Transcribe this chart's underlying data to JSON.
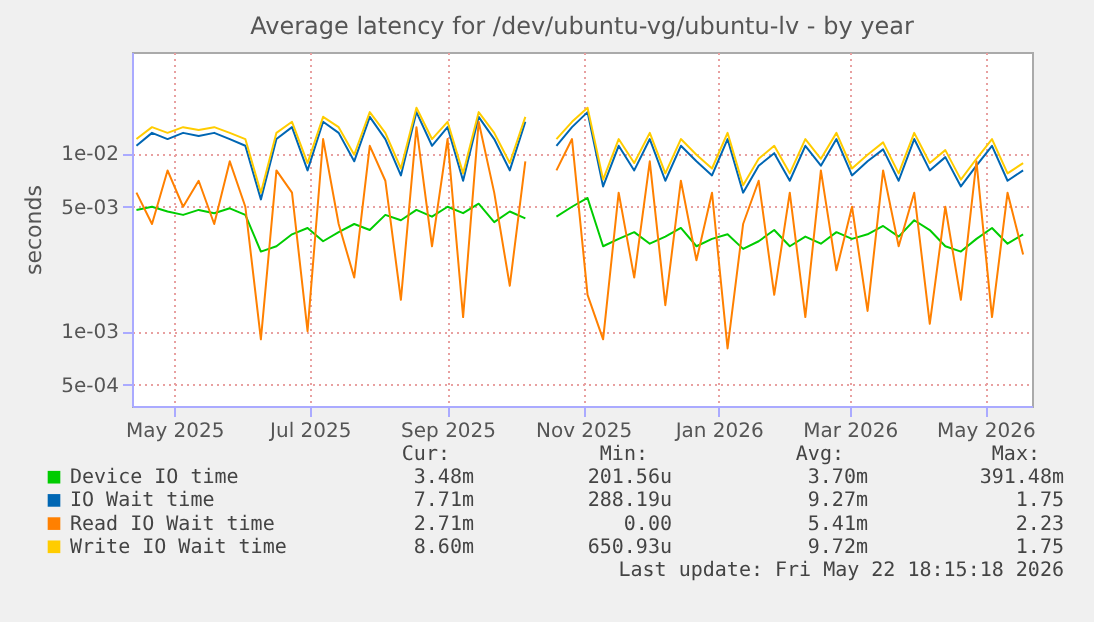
{
  "chart_data": {
    "type": "line",
    "title": "Average latency for /dev/ubuntu-vg/ubuntu-lv - by year",
    "ylabel": "seconds",
    "x": [
      "2025-04-14",
      "2025-04-21",
      "2025-04-28",
      "2025-05-05",
      "2025-05-12",
      "2025-05-19",
      "2025-05-26",
      "2025-06-02",
      "2025-06-09",
      "2025-06-16",
      "2025-06-23",
      "2025-06-30",
      "2025-07-07",
      "2025-07-14",
      "2025-07-21",
      "2025-07-28",
      "2025-08-04",
      "2025-08-11",
      "2025-08-18",
      "2025-08-25",
      "2025-09-01",
      "2025-09-08",
      "2025-09-15",
      "2025-09-22",
      "2025-09-29",
      "2025-10-06",
      "2025-10-13",
      "2025-10-20",
      "2025-10-27",
      "2025-11-03",
      "2025-11-10",
      "2025-11-17",
      "2025-11-24",
      "2025-12-01",
      "2025-12-08",
      "2025-12-15",
      "2025-12-22",
      "2025-12-29",
      "2026-01-05",
      "2026-01-12",
      "2026-01-19",
      "2026-01-26",
      "2026-02-02",
      "2026-02-09",
      "2026-02-16",
      "2026-02-23",
      "2026-03-02",
      "2026-03-09",
      "2026-03-16",
      "2026-03-23",
      "2026-03-30",
      "2026-04-06",
      "2026-04-13",
      "2026-04-20",
      "2026-04-27",
      "2026-05-04",
      "2026-05-11",
      "2026-05-18"
    ],
    "series": [
      {
        "name": "Device IO time",
        "color": "#00cc00",
        "values": [
          0.0048,
          0.005,
          0.0047,
          0.0045,
          0.0048,
          0.0046,
          0.0049,
          0.0045,
          0.0028,
          0.003,
          0.0035,
          0.0038,
          0.0032,
          0.0036,
          0.004,
          0.0037,
          0.0045,
          0.0042,
          0.0048,
          0.0044,
          0.005,
          0.0046,
          0.0052,
          0.0041,
          0.0047,
          0.0043,
          null,
          0.0044,
          0.005,
          0.0056,
          0.003,
          0.0033,
          0.0036,
          0.0031,
          0.0034,
          0.0038,
          0.003,
          0.0033,
          0.0035,
          0.0029,
          0.0032,
          0.0037,
          0.003,
          0.0034,
          0.0031,
          0.0036,
          0.0033,
          0.0035,
          0.0039,
          0.0034,
          0.0042,
          0.0037,
          0.003,
          0.0028,
          0.0033,
          0.0038,
          0.0031,
          0.0035
        ]
      },
      {
        "name": "IO Wait time",
        "color": "#0066b3",
        "values": [
          0.011,
          0.013,
          0.012,
          0.013,
          0.0125,
          0.013,
          0.012,
          0.011,
          0.0055,
          0.012,
          0.014,
          0.008,
          0.015,
          0.013,
          0.009,
          0.016,
          0.012,
          0.0075,
          0.017,
          0.011,
          0.014,
          0.007,
          0.016,
          0.012,
          0.008,
          0.015,
          null,
          0.011,
          0.014,
          0.017,
          0.0065,
          0.011,
          0.008,
          0.012,
          0.007,
          0.011,
          0.009,
          0.0075,
          0.012,
          0.006,
          0.0085,
          0.01,
          0.007,
          0.011,
          0.0085,
          0.012,
          0.0075,
          0.009,
          0.0105,
          0.007,
          0.012,
          0.008,
          0.0095,
          0.0065,
          0.0085,
          0.011,
          0.007,
          0.008
        ]
      },
      {
        "name": "Read IO Wait time",
        "color": "#ff8000",
        "values": [
          0.006,
          0.004,
          0.008,
          0.005,
          0.007,
          0.004,
          0.009,
          0.005,
          0.0009,
          0.008,
          0.006,
          0.001,
          0.012,
          0.004,
          0.002,
          0.011,
          0.007,
          0.0015,
          0.014,
          0.003,
          0.012,
          0.0012,
          0.015,
          0.006,
          0.0018,
          0.009,
          null,
          0.008,
          0.012,
          0.0016,
          0.0009,
          0.006,
          0.002,
          0.009,
          0.0014,
          0.007,
          0.0025,
          0.006,
          0.0008,
          0.004,
          0.007,
          0.0016,
          0.006,
          0.0012,
          0.008,
          0.0022,
          0.005,
          0.0013,
          0.008,
          0.003,
          0.006,
          0.0011,
          0.005,
          0.0015,
          0.009,
          0.0012,
          0.006,
          0.0027
        ]
      },
      {
        "name": "Write IO Wait time",
        "color": "#ffcc00",
        "values": [
          0.012,
          0.014,
          0.013,
          0.014,
          0.0135,
          0.014,
          0.013,
          0.012,
          0.006,
          0.013,
          0.015,
          0.0088,
          0.016,
          0.014,
          0.0098,
          0.017,
          0.013,
          0.0082,
          0.018,
          0.012,
          0.015,
          0.0077,
          0.017,
          0.013,
          0.0088,
          0.016,
          null,
          0.012,
          0.015,
          0.018,
          0.0071,
          0.012,
          0.0088,
          0.013,
          0.0077,
          0.012,
          0.0098,
          0.0082,
          0.013,
          0.0066,
          0.0093,
          0.011,
          0.0077,
          0.012,
          0.0093,
          0.013,
          0.0082,
          0.0098,
          0.0115,
          0.0077,
          0.013,
          0.0088,
          0.0104,
          0.0071,
          0.0093,
          0.012,
          0.0077,
          0.0088
        ]
      }
    ],
    "xlim": [
      "2025-04-12",
      "2026-05-22"
    ],
    "xticks": [
      {
        "value": "2025-05-01",
        "label": "May 2025"
      },
      {
        "value": "2025-07-01",
        "label": "Jul 2025"
      },
      {
        "value": "2025-09-01",
        "label": "Sep 2025"
      },
      {
        "value": "2025-11-01",
        "label": "Nov 2025"
      },
      {
        "value": "2026-01-01",
        "label": "Jan 2026"
      },
      {
        "value": "2026-03-01",
        "label": "Mar 2026"
      },
      {
        "value": "2026-05-01",
        "label": "May 2026"
      }
    ],
    "ylim": [
      0.00038,
      0.037
    ],
    "yticks": [
      {
        "value": 0.0005,
        "label": "5e-04"
      },
      {
        "value": 0.001,
        "label": "1e-03"
      },
      {
        "value": 0.005,
        "label": "5e-03"
      },
      {
        "value": 0.01,
        "label": "1e-02"
      }
    ],
    "log": "y",
    "grid": true,
    "legend": "bottom",
    "line_style": "solid",
    "marker": "none",
    "annotations": [
      "Cur:",
      "Min:",
      "Avg:",
      "Max:",
      "3.48m",
      "201.56u",
      "3.70m",
      "391.48m",
      "7.71m",
      "288.19u",
      "9.27m",
      "1.75",
      "2.71m",
      "0.00",
      "5.41m",
      "2.23",
      "8.60m",
      "650.93u",
      "9.72m",
      "1.75",
      "Last update: Fri May 22 18:15:18 2026"
    ]
  }
}
